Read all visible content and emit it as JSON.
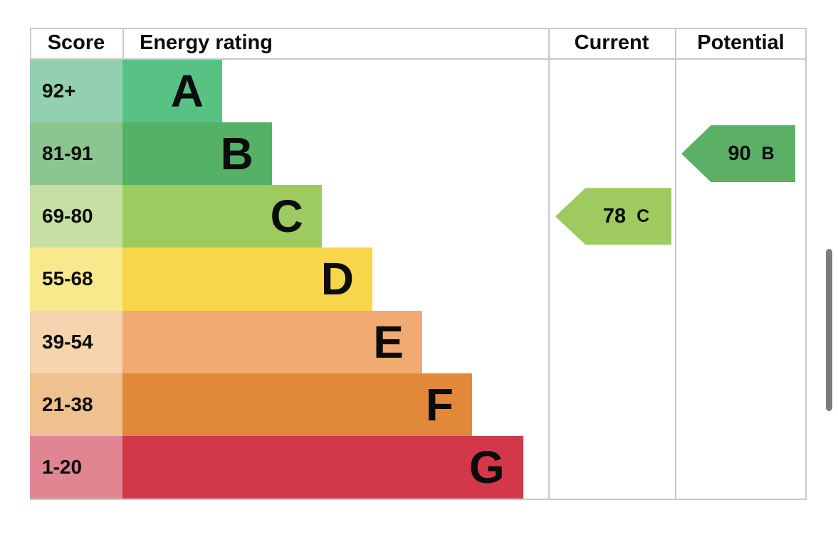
{
  "header": {
    "score": "Score",
    "energy_rating": "Energy rating",
    "current": "Current",
    "potential": "Potential"
  },
  "chart_data": {
    "type": "bar",
    "title": "EPC energy efficiency rating chart",
    "columns": [
      "Score",
      "Energy rating",
      "Current",
      "Potential"
    ],
    "bands": [
      {
        "score": "92+",
        "letter": "A",
        "bar_color": "#57c284",
        "score_color": "#93d0af",
        "width_pct": 23.4
      },
      {
        "score": "81-91",
        "letter": "B",
        "bar_color": "#55b166",
        "score_color": "#8bc690",
        "width_pct": 35.1
      },
      {
        "score": "69-80",
        "letter": "C",
        "bar_color": "#9ccb5f",
        "score_color": "#c6e0a3",
        "width_pct": 46.8
      },
      {
        "score": "55-68",
        "letter": "D",
        "bar_color": "#f7d64a",
        "score_color": "#fae98c",
        "width_pct": 58.7
      },
      {
        "score": "39-54",
        "letter": "E",
        "bar_color": "#efab72",
        "score_color": "#f6d4ad",
        "width_pct": 70.4
      },
      {
        "score": "21-38",
        "letter": "F",
        "bar_color": "#e2883b",
        "score_color": "#eec18f",
        "width_pct": 82.1
      },
      {
        "score": "1-20",
        "letter": "G",
        "bar_color": "#d2384a",
        "score_color": "#e28593",
        "width_pct": 94.1
      }
    ],
    "current": {
      "value": "78",
      "letter": "C",
      "row_index": 2,
      "color": "#9fca60"
    },
    "potential": {
      "value": "90",
      "letter": "B",
      "row_index": 1,
      "color": "#5bb066"
    },
    "layout": {
      "legend": "none",
      "grid": "column dividers only",
      "border_color": "#c9c9c9"
    }
  },
  "scrollbar": {
    "thumb_color": "#7d7d7d"
  }
}
